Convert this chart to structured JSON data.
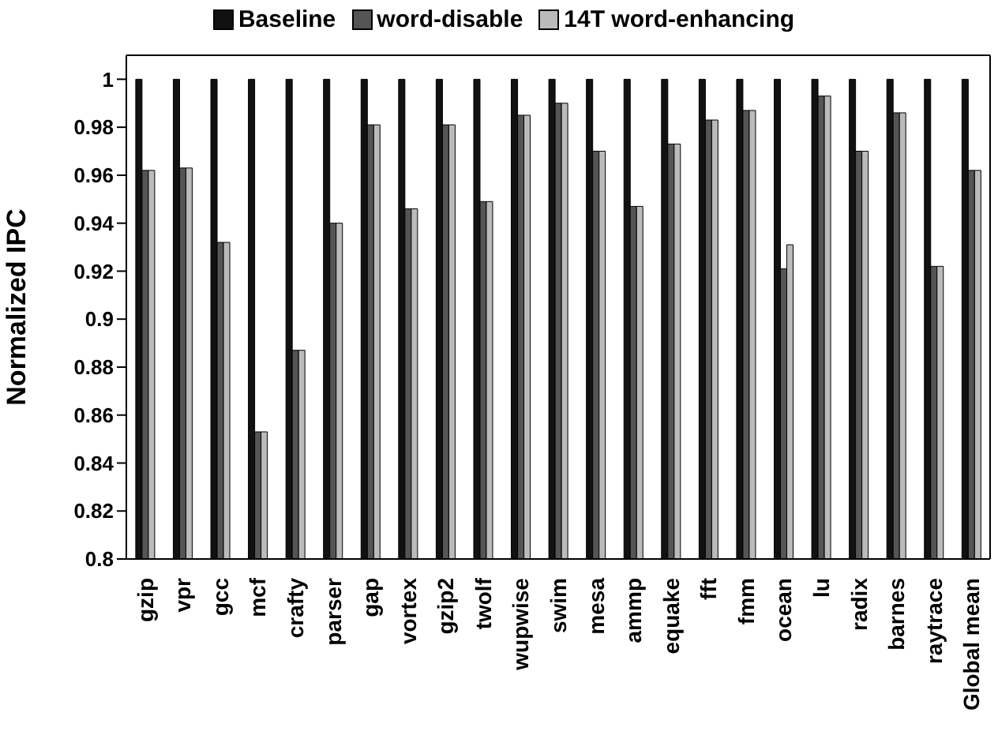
{
  "chart_data": {
    "type": "bar",
    "ylabel": "Normalized IPC",
    "categories": [
      "gzip",
      "vpr",
      "gcc",
      "mcf",
      "crafty",
      "parser",
      "gap",
      "vortex",
      "gzip2",
      "twolf",
      "wupwise",
      "swim",
      "mesa",
      "ammp",
      "equake",
      "fft",
      "fmm",
      "ocean",
      "lu",
      "radix",
      "barnes",
      "raytrace",
      "Global mean"
    ],
    "series": [
      {
        "name": "Baseline",
        "color": "#111111",
        "values": [
          1,
          1,
          1,
          1,
          1,
          1,
          1,
          1,
          1,
          1,
          1,
          1,
          1,
          1,
          1,
          1,
          1,
          1,
          1,
          1,
          1,
          1,
          1
        ]
      },
      {
        "name": "word-disable",
        "color": "#555555",
        "values": [
          0.962,
          0.963,
          0.932,
          0.853,
          0.887,
          0.94,
          0.981,
          0.946,
          0.981,
          0.949,
          0.985,
          0.99,
          0.97,
          0.947,
          0.973,
          0.983,
          0.987,
          0.921,
          0.993,
          0.97,
          0.986,
          0.922,
          0.962
        ]
      },
      {
        "name": "14T word-enhancing",
        "color": "#bbbbbb",
        "values": [
          0.962,
          0.963,
          0.932,
          0.853,
          0.887,
          0.94,
          0.981,
          0.946,
          0.981,
          0.949,
          0.985,
          0.99,
          0.97,
          0.947,
          0.973,
          0.983,
          0.987,
          0.931,
          0.993,
          0.97,
          0.986,
          0.922,
          0.962
        ]
      }
    ],
    "ylim": [
      0.8,
      1.01
    ],
    "yticks": [
      0.8,
      0.82,
      0.84,
      0.86,
      0.88,
      0.9,
      0.92,
      0.94,
      0.96,
      0.98,
      1
    ],
    "grid": false,
    "legend": "top"
  }
}
